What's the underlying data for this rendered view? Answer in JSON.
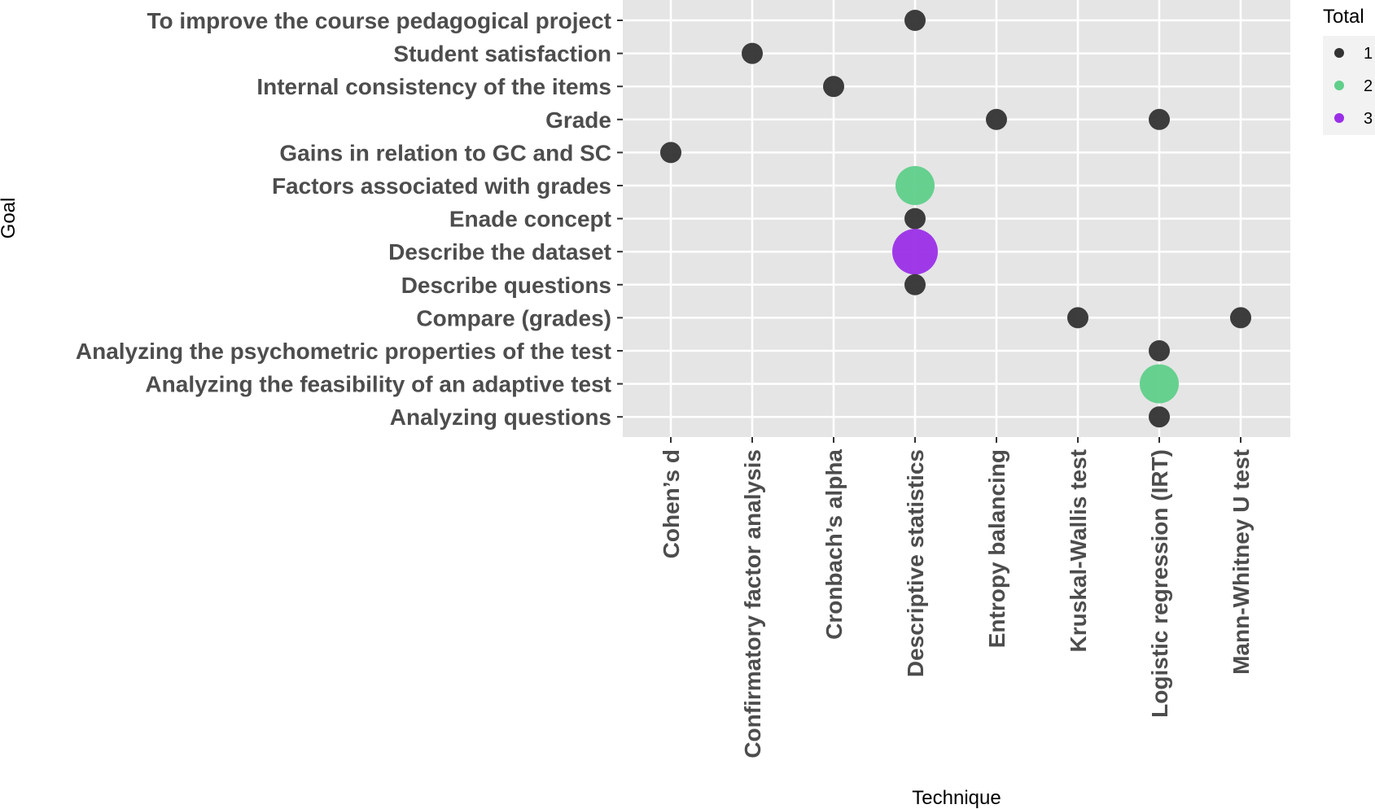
{
  "chart_data": {
    "type": "scatter",
    "xlabel": "Technique",
    "ylabel": "Goal",
    "x_categories": [
      "Cohen’s d",
      "Confirmatory factor analysis",
      "Cronbach’s alpha",
      "Descriptive statistics",
      "Entropy balancing",
      "Kruskal-Wallis test",
      "Logistic regression (IRT)",
      "Mann-Whitney U test"
    ],
    "y_categories": [
      "To improve the course pedagogical project",
      "Student satisfaction",
      "Internal consistency of the items",
      "Grade",
      "Gains in relation to GC and SC",
      "Factors associated with grades",
      "Enade concept",
      "Describe the dataset",
      "Describe questions",
      "Compare (grades)",
      "Analyzing the psychometric properties of the test",
      "Analyzing the feasibility of an adaptive test",
      "Analyzing questions"
    ],
    "points": [
      {
        "x": "Descriptive statistics",
        "y": "To improve the course pedagogical project",
        "total": 1
      },
      {
        "x": "Confirmatory factor analysis",
        "y": "Student satisfaction",
        "total": 1
      },
      {
        "x": "Cronbach’s alpha",
        "y": "Internal consistency of the items",
        "total": 1
      },
      {
        "x": "Entropy balancing",
        "y": "Grade",
        "total": 1
      },
      {
        "x": "Logistic regression (IRT)",
        "y": "Grade",
        "total": 1
      },
      {
        "x": "Cohen’s d",
        "y": "Gains in relation to GC and SC",
        "total": 1
      },
      {
        "x": "Descriptive statistics",
        "y": "Factors associated with grades",
        "total": 2
      },
      {
        "x": "Descriptive statistics",
        "y": "Enade concept",
        "total": 1
      },
      {
        "x": "Descriptive statistics",
        "y": "Describe the dataset",
        "total": 3
      },
      {
        "x": "Descriptive statistics",
        "y": "Describe questions",
        "total": 1
      },
      {
        "x": "Kruskal-Wallis test",
        "y": "Compare (grades)",
        "total": 1
      },
      {
        "x": "Mann-Whitney U test",
        "y": "Compare (grades)",
        "total": 1
      },
      {
        "x": "Logistic regression (IRT)",
        "y": "Analyzing the psychometric properties of the test",
        "total": 1
      },
      {
        "x": "Logistic regression (IRT)",
        "y": "Analyzing the feasibility of an adaptive test",
        "total": 2
      },
      {
        "x": "Logistic regression (IRT)",
        "y": "Analyzing questions",
        "total": 1
      }
    ],
    "legend": {
      "title": "Total",
      "placement": "right",
      "items": [
        {
          "label": "1",
          "value": 1,
          "color": "#333333"
        },
        {
          "label": "2",
          "value": 2,
          "color": "#5fcf8a"
        },
        {
          "label": "3",
          "value": 3,
          "color": "#9b2fe8"
        }
      ]
    },
    "colors": {
      "1": "#333333",
      "2": "#5fcf8a",
      "3": "#9b2fe8"
    },
    "panel_background": "#e5e5e5",
    "grid": true
  }
}
